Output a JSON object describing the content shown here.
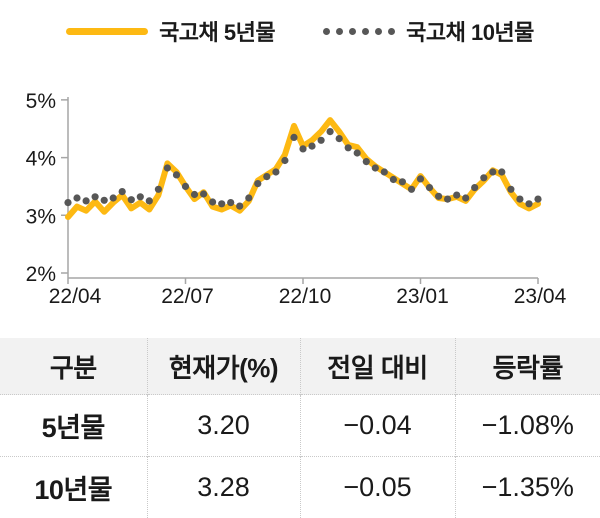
{
  "legend": {
    "series5_label": "국고채 5년물",
    "series10_label": "국고채 10년물"
  },
  "colors": {
    "series5_yellow": "#FDB913",
    "series10_gray": "#575757",
    "axis_gray": "#A6A6A6",
    "table_header_bg": "#F2F2F2",
    "table_border": "#C9C9C9"
  },
  "chart_data": {
    "type": "line",
    "title": "",
    "xlabel": "",
    "ylabel": "",
    "ylim": [
      2,
      5
    ],
    "grid": false,
    "legend_position": "top",
    "x_ticks": [
      "22/04",
      "22/07",
      "22/10",
      "23/01",
      "23/04"
    ],
    "y_ticks": [
      {
        "label": "5%",
        "value": 5
      },
      {
        "label": "4%",
        "value": 4
      },
      {
        "label": "3%",
        "value": 3
      },
      {
        "label": "2%",
        "value": 2
      }
    ],
    "x_description": "weekly observations from 2022-04 to 2023-04",
    "series": [
      {
        "name": "국고채 5년물",
        "style": "solid-thick",
        "color": "#FDB913",
        "values": [
          2.97,
          3.15,
          3.08,
          3.24,
          3.06,
          3.22,
          3.35,
          3.12,
          3.22,
          3.1,
          3.35,
          3.9,
          3.75,
          3.5,
          3.28,
          3.4,
          3.15,
          3.1,
          3.17,
          3.08,
          3.25,
          3.6,
          3.7,
          3.8,
          4.05,
          4.55,
          4.2,
          4.3,
          4.45,
          4.65,
          4.45,
          4.22,
          4.18,
          3.98,
          3.85,
          3.75,
          3.65,
          3.55,
          3.45,
          3.68,
          3.48,
          3.3,
          3.28,
          3.32,
          3.25,
          3.45,
          3.6,
          3.78,
          3.7,
          3.4,
          3.2,
          3.12,
          3.2
        ]
      },
      {
        "name": "국고채 10년물",
        "style": "dotted",
        "color": "#575757",
        "values": [
          3.22,
          3.3,
          3.25,
          3.32,
          3.26,
          3.3,
          3.41,
          3.27,
          3.32,
          3.25,
          3.45,
          3.82,
          3.7,
          3.5,
          3.36,
          3.37,
          3.23,
          3.2,
          3.22,
          3.16,
          3.3,
          3.55,
          3.67,
          3.75,
          3.95,
          4.35,
          4.15,
          4.2,
          4.3,
          4.45,
          4.33,
          4.17,
          4.08,
          3.93,
          3.82,
          3.75,
          3.62,
          3.58,
          3.45,
          3.63,
          3.48,
          3.33,
          3.28,
          3.35,
          3.3,
          3.48,
          3.65,
          3.75,
          3.75,
          3.45,
          3.28,
          3.2,
          3.28
        ]
      }
    ]
  },
  "table": {
    "headers": [
      "구분",
      "현재가(%)",
      "전일 대비",
      "등락률"
    ],
    "rows": [
      {
        "label": "5년물",
        "current": "3.20",
        "change": "−0.04",
        "pct": "−1.08%"
      },
      {
        "label": "10년물",
        "current": "3.28",
        "change": "−0.05",
        "pct": "−1.35%"
      }
    ]
  }
}
